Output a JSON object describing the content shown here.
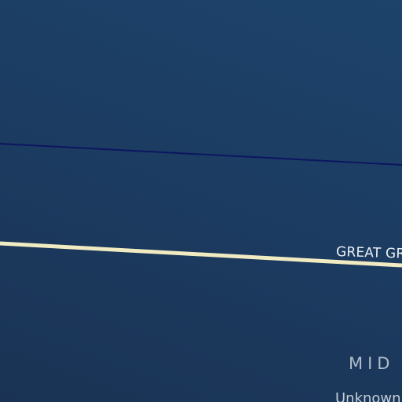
{
  "map": {
    "colors": {
      "background": "#1c3c62",
      "thin_line": "#0c1660",
      "road": "#f1ebc2",
      "road_label": "#ecf0f4",
      "region_label": "#aebccb",
      "place_label": "#c4cfd9"
    },
    "road_label": "GREAT GR",
    "region_label": "MID",
    "place_label": "Unknown"
  }
}
